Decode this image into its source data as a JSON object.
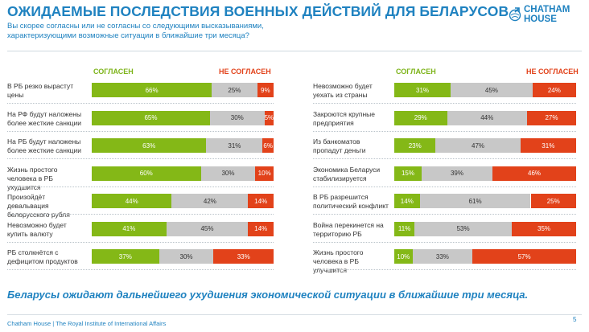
{
  "header": {
    "title": "ОЖИДАЕМЫЕ ПОСЛЕДСТВИЯ ВОЕННЫХ ДЕЙСТВИЙ ДЛЯ БЕЛАРУСОВ",
    "subtitle": "Вы скорее согласны или не согласны со следующими высказываниями, характеризующими возможные ситуации в ближайшие три месяца?"
  },
  "logo": {
    "line1": "CHATHAM",
    "line2": "HOUSE",
    "icon": "globe-arrow-icon",
    "color": "#1f82c0"
  },
  "colors": {
    "agree": "#84b817",
    "neutral": "#c8c8c8",
    "disagree": "#e2421a",
    "accent": "#1f82c0"
  },
  "chart_data": [
    {
      "type": "bar",
      "stacked": true,
      "orientation": "horizontal",
      "legend": {
        "agree": "СОГЛАСЕН",
        "disagree": "НЕ СОГЛАСЕН"
      },
      "rows": [
        {
          "label": "В РБ резко вырастут цены",
          "agree": 66,
          "neutral": 25,
          "disagree": 9
        },
        {
          "label": "На РФ будут наложены более жесткие санкции",
          "agree": 65,
          "neutral": 30,
          "disagree": 5
        },
        {
          "label": "На РБ будут наложены более жесткие санкции",
          "agree": 63,
          "neutral": 31,
          "disagree": 6
        },
        {
          "label": "Жизнь простого человека в РБ ухудшится",
          "agree": 60,
          "neutral": 30,
          "disagree": 10
        },
        {
          "label": "Произойдёт девальвация белорусского рубля",
          "agree": 44,
          "neutral": 42,
          "disagree": 14
        },
        {
          "label": "Невозможно будет купить валюту",
          "agree": 41,
          "neutral": 45,
          "disagree": 14
        },
        {
          "label": "РБ столкнётся с дефицитом продуктов",
          "agree": 37,
          "neutral": 30,
          "disagree": 33
        }
      ]
    },
    {
      "type": "bar",
      "stacked": true,
      "orientation": "horizontal",
      "legend": {
        "agree": "СОГЛАСЕН",
        "disagree": "НЕ СОГЛАСЕН"
      },
      "rows": [
        {
          "label": "Невозможно будет уехать из страны",
          "agree": 31,
          "neutral": 45,
          "disagree": 24
        },
        {
          "label": "Закроются крупные предприятия",
          "agree": 29,
          "neutral": 44,
          "disagree": 27
        },
        {
          "label": "Из банкоматов пропадут деньги",
          "agree": 23,
          "neutral": 47,
          "disagree": 31
        },
        {
          "label": "Экономика Беларуси стабилизируется",
          "agree": 15,
          "neutral": 39,
          "disagree": 46
        },
        {
          "label": "В РБ разрешится политический конфликт",
          "agree": 14,
          "neutral": 61,
          "disagree": 25
        },
        {
          "label": "Война перекинется на территорию РБ",
          "agree": 11,
          "neutral": 53,
          "disagree": 35
        },
        {
          "label": "Жизнь простого человека в РБ улучшится",
          "agree": 10,
          "neutral": 33,
          "disagree": 57
        }
      ]
    }
  ],
  "conclusion": "Беларусы ожидают дальнейшего ухудшения экономической ситуации в ближайшие три месяца.",
  "footer": {
    "text": "Chatham House  |  The Royal Institute of International Affairs",
    "page": "5"
  }
}
